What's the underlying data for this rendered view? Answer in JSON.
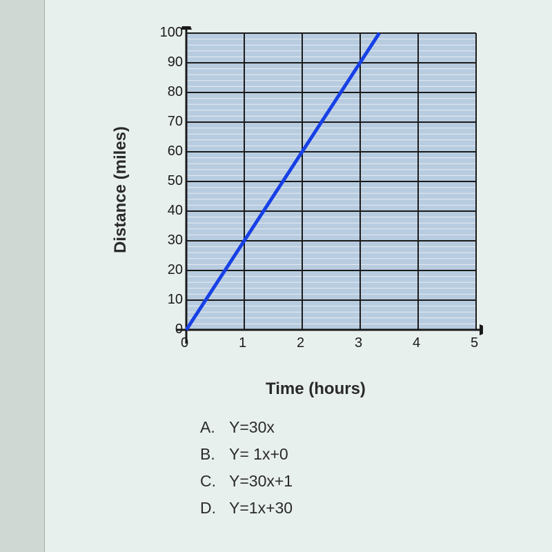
{
  "chart": {
    "type": "line",
    "xlabel": "Time (hours)",
    "ylabel": "Distance (miles)",
    "xlim": [
      0,
      5
    ],
    "ylim": [
      0,
      100
    ],
    "xtick_step": 1,
    "ytick_step": 10,
    "ytick_labels": [
      "0",
      "10",
      "20",
      "30",
      "40",
      "50",
      "60",
      "70",
      "80",
      "90",
      "100"
    ],
    "xtick_labels": [
      "0",
      "1",
      "2",
      "3",
      "4",
      "5"
    ],
    "minor_y_lines_per_major": 5,
    "background_color": "#b8cce0",
    "minor_grid_color": "#e6ecf2",
    "major_grid_color": "#1a1a1a",
    "line_color": "#1740e6",
    "line_width": 5,
    "label_fontsize": 24,
    "tick_fontsize": 20,
    "series": {
      "x": [
        0,
        3.33
      ],
      "y": [
        0,
        100
      ]
    }
  },
  "answers": {
    "list": [
      {
        "letter": "A.",
        "text": "Y=30x"
      },
      {
        "letter": "B.",
        "text": "Y= 1x+0"
      },
      {
        "letter": "C.",
        "text": "Y=30x+1"
      },
      {
        "letter": "D.",
        "text": "Y=1x+30"
      }
    ]
  }
}
